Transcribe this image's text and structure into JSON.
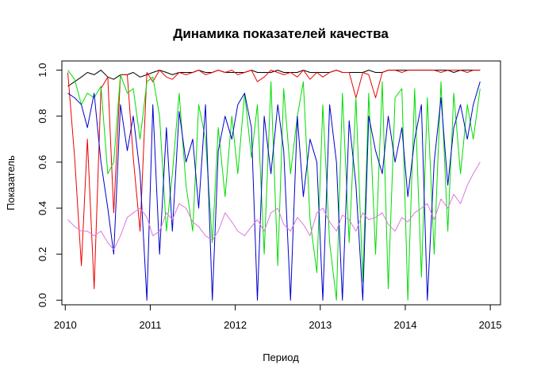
{
  "chart_data": {
    "type": "line",
    "title": "Динамика показателей качества",
    "xlabel": "Период",
    "ylabel": "Показатель",
    "xlim": [
      2009.96,
      2015.12
    ],
    "ylim": [
      -0.02,
      1.04
    ],
    "x_ticks": [
      2010,
      2011,
      2012,
      2013,
      2014,
      2015
    ],
    "x_tick_labels": [
      "2010",
      "2011",
      "2012",
      "2013",
      "2014",
      "2015"
    ],
    "y_ticks": [
      0.0,
      0.2,
      0.4,
      0.6,
      0.8,
      1.0
    ],
    "y_tick_labels": [
      "0.0",
      "0.2",
      "0.4",
      "0.6",
      "0.8",
      "1.0"
    ],
    "grid": false,
    "legend": "none",
    "x": [
      2010.03,
      2010.11,
      2010.19,
      2010.26,
      2010.34,
      2010.42,
      2010.5,
      2010.57,
      2010.65,
      2010.73,
      2010.8,
      2010.88,
      2010.96,
      2011.03,
      2011.11,
      2011.19,
      2011.26,
      2011.34,
      2011.42,
      2011.5,
      2011.57,
      2011.65,
      2011.73,
      2011.8,
      2011.88,
      2011.96,
      2012.03,
      2012.11,
      2012.19,
      2012.26,
      2012.34,
      2012.42,
      2012.5,
      2012.57,
      2012.65,
      2012.73,
      2012.8,
      2012.88,
      2012.96,
      2013.03,
      2013.11,
      2013.19,
      2013.26,
      2013.34,
      2013.42,
      2013.5,
      2013.57,
      2013.65,
      2013.73,
      2013.8,
      2013.88,
      2013.96,
      2014.03,
      2014.11,
      2014.19,
      2014.26,
      2014.34,
      2014.42,
      2014.5,
      2014.57,
      2014.65,
      2014.73,
      2014.8,
      2014.88
    ],
    "series": [
      {
        "color": "#000000",
        "values": [
          0.93,
          0.95,
          0.97,
          0.99,
          0.98,
          1.0,
          0.97,
          0.96,
          0.98,
          0.98,
          0.99,
          0.97,
          0.98,
          0.99,
          1.0,
          0.99,
          0.98,
          0.99,
          0.99,
          0.99,
          1.0,
          0.99,
          0.99,
          1.0,
          0.99,
          0.99,
          0.99,
          0.99,
          1.0,
          0.99,
          0.99,
          0.99,
          1.0,
          0.99,
          0.99,
          0.99,
          1.0,
          0.99,
          0.99,
          0.99,
          0.99,
          1.0,
          0.99,
          0.99,
          0.99,
          0.99,
          1.0,
          0.99,
          0.99,
          1.0,
          1.0,
          1.0,
          1.0,
          1.0,
          1.0,
          1.0,
          1.0,
          1.0,
          1.0,
          0.99,
          1.0,
          1.0,
          1.0,
          1.0
        ]
      },
      {
        "color": "#ee0000",
        "values": [
          0.99,
          0.62,
          0.15,
          0.7,
          0.05,
          0.92,
          0.97,
          0.38,
          0.98,
          0.98,
          0.62,
          0.3,
          0.99,
          0.95,
          1.0,
          0.97,
          0.96,
          0.99,
          0.98,
          0.99,
          1.0,
          0.98,
          0.99,
          1.0,
          0.99,
          1.0,
          0.98,
          0.99,
          1.0,
          0.95,
          0.97,
          1.0,
          0.99,
          0.98,
          0.99,
          0.97,
          1.0,
          0.96,
          0.99,
          0.97,
          0.99,
          1.0,
          0.99,
          0.99,
          0.88,
          0.99,
          0.98,
          0.88,
          0.99,
          1.0,
          1.0,
          0.99,
          1.0,
          1.0,
          1.0,
          1.0,
          1.0,
          0.99,
          1.0,
          1.0,
          1.0,
          0.99,
          1.0,
          1.0
        ]
      },
      {
        "color": "#00dd00",
        "values": [
          1.0,
          0.96,
          0.85,
          0.9,
          0.88,
          0.93,
          0.55,
          0.6,
          0.98,
          0.9,
          0.92,
          0.7,
          0.95,
          0.97,
          0.8,
          0.3,
          0.55,
          0.9,
          0.5,
          0.3,
          0.85,
          0.7,
          0.25,
          0.75,
          0.45,
          0.8,
          0.55,
          0.9,
          0.62,
          0.85,
          0.2,
          0.95,
          0.15,
          0.92,
          0.55,
          0.8,
          0.95,
          0.35,
          0.12,
          0.85,
          0.25,
          0.0,
          0.9,
          0.25,
          0.88,
          0.08,
          0.9,
          0.2,
          0.95,
          0.05,
          0.88,
          0.92,
          0.0,
          0.92,
          0.1,
          0.88,
          0.2,
          0.95,
          0.3,
          0.9,
          0.55,
          0.85,
          0.7,
          0.92
        ]
      },
      {
        "color": "#0000cc",
        "values": [
          0.9,
          0.88,
          0.85,
          0.75,
          0.9,
          0.6,
          0.4,
          0.2,
          0.85,
          0.65,
          0.8,
          0.55,
          0.0,
          0.85,
          0.2,
          0.75,
          0.3,
          0.82,
          0.6,
          0.7,
          0.4,
          0.85,
          0.0,
          0.65,
          0.8,
          0.7,
          0.85,
          0.9,
          0.75,
          0.0,
          0.8,
          0.55,
          0.85,
          0.65,
          0.0,
          0.8,
          0.45,
          0.7,
          0.6,
          0.0,
          0.85,
          0.6,
          0.0,
          0.78,
          0.5,
          0.0,
          0.8,
          0.65,
          0.55,
          0.8,
          0.6,
          0.75,
          0.45,
          0.7,
          0.85,
          0.0,
          0.6,
          0.88,
          0.5,
          0.75,
          0.85,
          0.7,
          0.85,
          0.95
        ]
      },
      {
        "color": "#dd77dd",
        "values": [
          0.35,
          0.32,
          0.3,
          0.3,
          0.28,
          0.3,
          0.25,
          0.22,
          0.28,
          0.36,
          0.38,
          0.4,
          0.36,
          0.28,
          0.3,
          0.38,
          0.35,
          0.42,
          0.4,
          0.34,
          0.32,
          0.28,
          0.26,
          0.3,
          0.38,
          0.34,
          0.3,
          0.28,
          0.32,
          0.35,
          0.3,
          0.38,
          0.4,
          0.33,
          0.3,
          0.36,
          0.33,
          0.28,
          0.38,
          0.4,
          0.34,
          0.3,
          0.37,
          0.35,
          0.3,
          0.38,
          0.35,
          0.36,
          0.38,
          0.33,
          0.3,
          0.36,
          0.34,
          0.38,
          0.4,
          0.42,
          0.35,
          0.44,
          0.4,
          0.46,
          0.42,
          0.5,
          0.55,
          0.6
        ]
      }
    ]
  }
}
